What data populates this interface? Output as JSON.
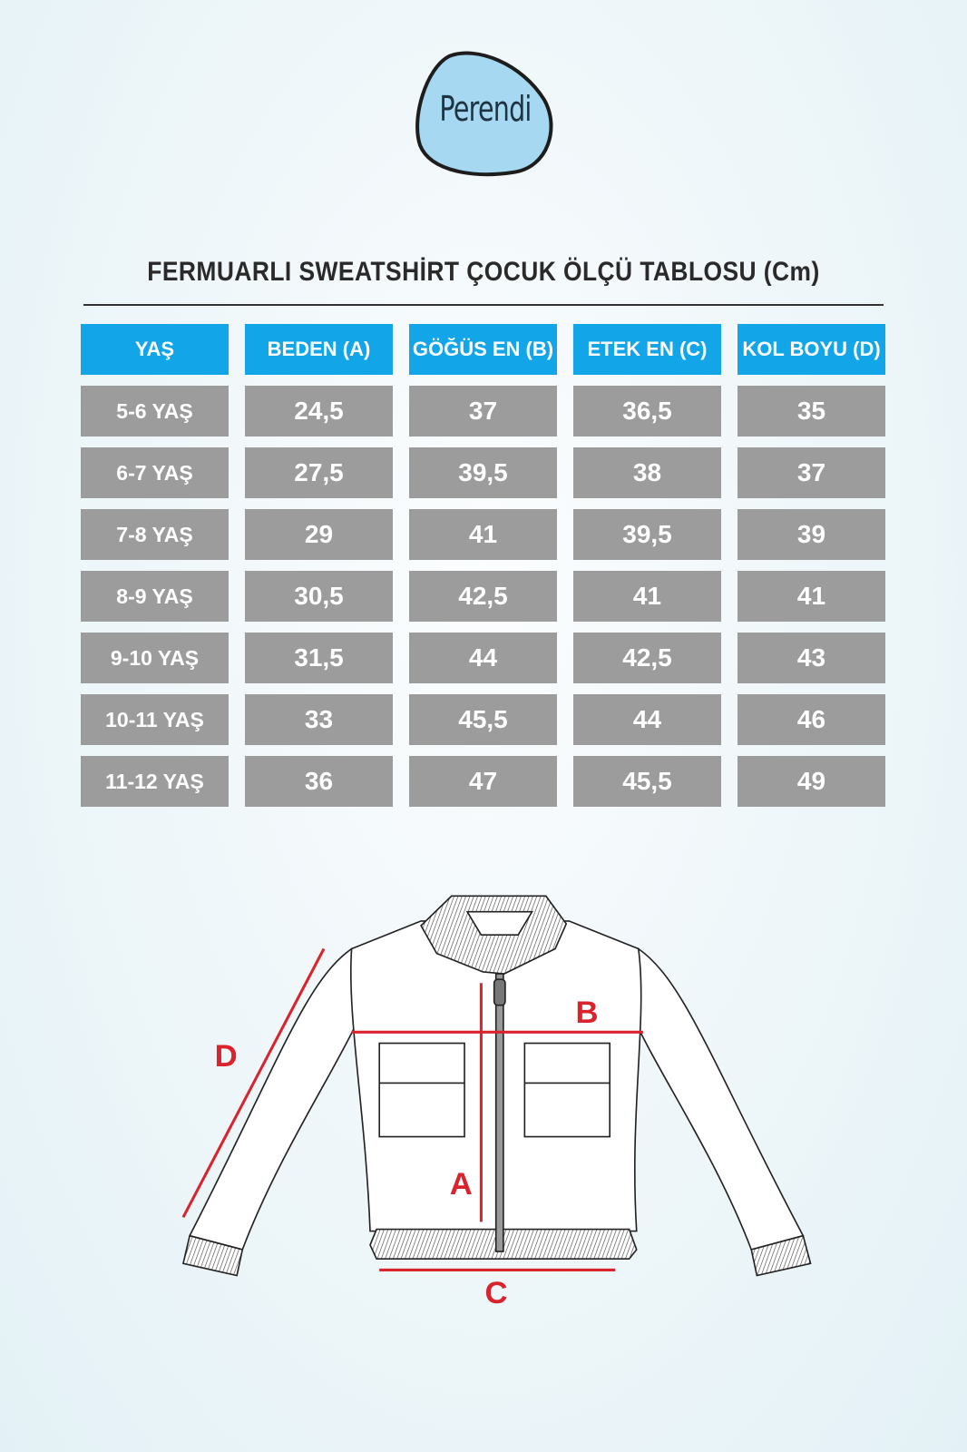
{
  "brand": {
    "name": "Perendi",
    "colors": {
      "blob": "#a6d8f2",
      "outline": "#1d1d1d"
    }
  },
  "title": "FERMUARLI SWEATSHİRT ÇOCUK ÖLÇÜ TABLOSU (Cm)",
  "colors": {
    "header": "#12a6e9",
    "cell": "#9c9c9c",
    "measure": "#d9232d"
  },
  "table": {
    "headers": [
      "YAŞ",
      "BEDEN (A)",
      "GÖĞÜS EN (B)",
      "ETEK EN (C)",
      "KOL BOYU (D)"
    ],
    "rows": [
      [
        "5-6 YAŞ",
        "24,5",
        "37",
        "36,5",
        "35"
      ],
      [
        "6-7 YAŞ",
        "27,5",
        "39,5",
        "38",
        "37"
      ],
      [
        "7-8 YAŞ",
        "29",
        "41",
        "39,5",
        "39"
      ],
      [
        "8-9 YAŞ",
        "30,5",
        "42,5",
        "41",
        "41"
      ],
      [
        "9-10 YAŞ",
        "31,5",
        "44",
        "42,5",
        "43"
      ],
      [
        "10-11 YAŞ",
        "33",
        "45,5",
        "44",
        "46"
      ],
      [
        "11-12 YAŞ",
        "36",
        "47",
        "45,5",
        "49"
      ]
    ]
  },
  "diagram": {
    "labels": {
      "a": "A",
      "b": "B",
      "c": "C",
      "d": "D"
    }
  }
}
